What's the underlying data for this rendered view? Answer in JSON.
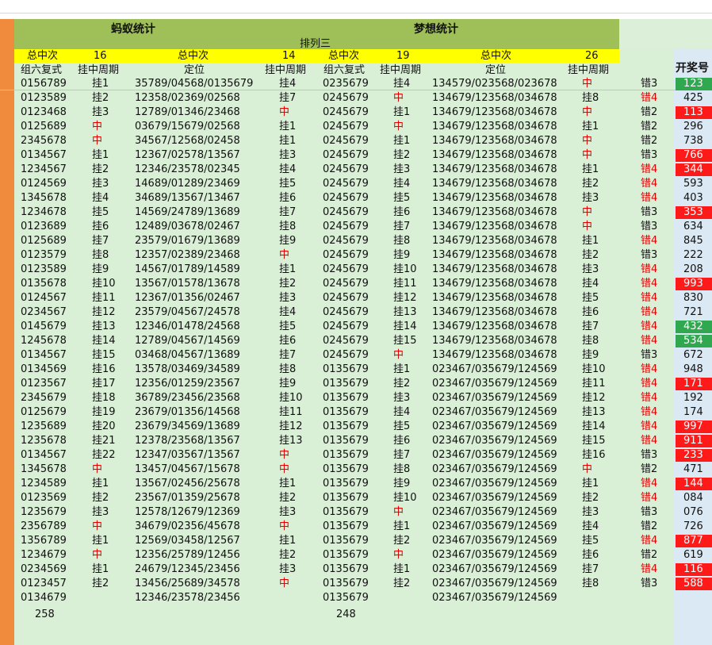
{
  "titles": {
    "ant": "蚂蚁统计",
    "dream": "梦想统计",
    "sub": "排列三"
  },
  "header1": {
    "total_label_a": "总中次",
    "total_a": "16",
    "total_label_b": "总中次",
    "total_b": "14",
    "total_label_c": "总中次",
    "total_c": "19",
    "total_label_d": "总中次",
    "total_d": "26"
  },
  "header2": {
    "c1": "组六复式",
    "c2": "挂中周期",
    "c3": "定位",
    "c4": "挂中周期",
    "c5": "组六复式",
    "c6": "挂中周期",
    "c7": "定位",
    "c8": "挂中周期",
    "c10": "开奖号"
  },
  "rows": [
    [
      "0156789",
      "挂1",
      "35789/04568/0135679",
      "挂4",
      "0235679",
      "挂4",
      "134579/023568/023678",
      "中",
      "错3",
      "123",
      "g"
    ],
    [
      "0123589",
      "挂2",
      "12358/02369/02568",
      "挂7",
      "0245679",
      "中",
      "134679/123568/034678",
      "挂8",
      "错4",
      "425",
      "b"
    ],
    [
      "0123468",
      "挂3",
      "12789/01346/23468",
      "中",
      "0245679",
      "挂1",
      "134679/123568/034678",
      "中",
      "错2",
      "113",
      "r"
    ],
    [
      "0125689",
      "中",
      "03679/15679/02568",
      "挂1",
      "0245679",
      "中",
      "134679/123568/034678",
      "挂1",
      "错2",
      "296",
      "b"
    ],
    [
      "2345678",
      "中",
      "34567/12568/02458",
      "挂1",
      "0245679",
      "挂1",
      "134679/123568/034678",
      "中",
      "错2",
      "738",
      "b"
    ],
    [
      "0134567",
      "挂1",
      "12367/02578/13567",
      "挂3",
      "0245679",
      "挂2",
      "134679/123568/034678",
      "中",
      "错3",
      "766",
      "r"
    ],
    [
      "1234567",
      "挂2",
      "12346/23578/02345",
      "挂4",
      "0245679",
      "挂3",
      "134679/123568/034678",
      "挂1",
      "错4",
      "344",
      "r"
    ],
    [
      "0124569",
      "挂3",
      "14689/01289/23469",
      "挂5",
      "0245679",
      "挂4",
      "134679/123568/034678",
      "挂2",
      "错4",
      "593",
      "b"
    ],
    [
      "1345678",
      "挂4",
      "34689/13567/13467",
      "挂6",
      "0245679",
      "挂5",
      "134679/123568/034678",
      "挂3",
      "错4",
      "403",
      "b"
    ],
    [
      "1234678",
      "挂5",
      "14569/24789/13689",
      "挂7",
      "0245679",
      "挂6",
      "134679/123568/034678",
      "中",
      "错3",
      "353",
      "r"
    ],
    [
      "0123689",
      "挂6",
      "12489/03678/02467",
      "挂8",
      "0245679",
      "挂7",
      "134679/123568/034678",
      "中",
      "错3",
      "634",
      "b"
    ],
    [
      "0125689",
      "挂7",
      "23579/01679/13689",
      "挂9",
      "0245679",
      "挂8",
      "134679/123568/034678",
      "挂1",
      "错4",
      "845",
      "b"
    ],
    [
      "0123579",
      "挂8",
      "12357/02389/23468",
      "中",
      "0245679",
      "挂9",
      "134679/123568/034678",
      "挂2",
      "错3",
      "222",
      "b"
    ],
    [
      "0123589",
      "挂9",
      "14567/01789/14589",
      "挂1",
      "0245679",
      "挂10",
      "134679/123568/034678",
      "挂3",
      "错4",
      "208",
      "b"
    ],
    [
      "0135678",
      "挂10",
      "13567/01578/13678",
      "挂2",
      "0245679",
      "挂11",
      "134679/123568/034678",
      "挂4",
      "错4",
      "993",
      "r"
    ],
    [
      "0124567",
      "挂11",
      "12367/01356/02467",
      "挂3",
      "0245679",
      "挂12",
      "134679/123568/034678",
      "挂5",
      "错4",
      "830",
      "b"
    ],
    [
      "0234567",
      "挂12",
      "23579/04567/24578",
      "挂4",
      "0245679",
      "挂13",
      "134679/123568/034678",
      "挂6",
      "错4",
      "721",
      "b"
    ],
    [
      "0145679",
      "挂13",
      "12346/01478/24568",
      "挂5",
      "0245679",
      "挂14",
      "134679/123568/034678",
      "挂7",
      "错4",
      "432",
      "g"
    ],
    [
      "1245678",
      "挂14",
      "12789/04567/14569",
      "挂6",
      "0245679",
      "挂15",
      "134679/123568/034678",
      "挂8",
      "错4",
      "534",
      "g"
    ],
    [
      "0134567",
      "挂15",
      "03468/04567/13689",
      "挂7",
      "0245679",
      "中",
      "134679/123568/034678",
      "挂9",
      "错3",
      "672",
      "b"
    ],
    [
      "0134569",
      "挂16",
      "13578/03469/34589",
      "挂8",
      "0135679",
      "挂1",
      "023467/035679/124569",
      "挂10",
      "错4",
      "948",
      "b"
    ],
    [
      "0123567",
      "挂17",
      "12356/01259/23567",
      "挂9",
      "0135679",
      "挂2",
      "023467/035679/124569",
      "挂11",
      "错4",
      "171",
      "r"
    ],
    [
      "2345679",
      "挂18",
      "36789/23456/23568",
      "挂10",
      "0135679",
      "挂3",
      "023467/035679/124569",
      "挂12",
      "错4",
      "192",
      "b"
    ],
    [
      "0125679",
      "挂19",
      "23679/01356/14568",
      "挂11",
      "0135679",
      "挂4",
      "023467/035679/124569",
      "挂13",
      "错4",
      "174",
      "b"
    ],
    [
      "1235689",
      "挂20",
      "23679/34569/13689",
      "挂12",
      "0135679",
      "挂5",
      "023467/035679/124569",
      "挂14",
      "错4",
      "997",
      "r"
    ],
    [
      "1235678",
      "挂21",
      "12378/23568/13567",
      "挂13",
      "0135679",
      "挂6",
      "023467/035679/124569",
      "挂15",
      "错4",
      "911",
      "r"
    ],
    [
      "0134567",
      "挂22",
      "12347/03567/13567",
      "中",
      "0135679",
      "挂7",
      "023467/035679/124569",
      "挂16",
      "错3",
      "233",
      "r"
    ],
    [
      "1345678",
      "中",
      "13457/04567/15678",
      "中",
      "0135679",
      "挂8",
      "023467/035679/124569",
      "中",
      "错2",
      "471",
      "b"
    ],
    [
      "1234589",
      "挂1",
      "13567/02456/25678",
      "挂1",
      "0135679",
      "挂9",
      "023467/035679/124569",
      "挂1",
      "错4",
      "144",
      "r"
    ],
    [
      "0123569",
      "挂2",
      "23567/01359/25678",
      "挂2",
      "0135679",
      "挂10",
      "023467/035679/124569",
      "挂2",
      "错4",
      "084",
      "b"
    ],
    [
      "1235679",
      "挂3",
      "12578/12679/12369",
      "挂3",
      "0135679",
      "中",
      "023467/035679/124569",
      "挂3",
      "错3",
      "076",
      "b"
    ],
    [
      "2356789",
      "中",
      "34679/02356/45678",
      "中",
      "0135679",
      "挂1",
      "023467/035679/124569",
      "挂4",
      "错2",
      "726",
      "b"
    ],
    [
      "1356789",
      "挂1",
      "12569/03458/12567",
      "挂1",
      "0135679",
      "挂2",
      "023467/035679/124569",
      "挂5",
      "错4",
      "877",
      "r"
    ],
    [
      "1234679",
      "中",
      "12356/25789/12456",
      "挂2",
      "0135679",
      "中",
      "023467/035679/124569",
      "挂6",
      "错2",
      "619",
      "b"
    ],
    [
      "0234569",
      "挂1",
      "24679/12345/23456",
      "挂3",
      "0135679",
      "挂1",
      "023467/035679/124569",
      "挂7",
      "错4",
      "116",
      "r"
    ],
    [
      "0123457",
      "挂2",
      "13456/25689/34578",
      "中",
      "0135679",
      "挂2",
      "023467/035679/124569",
      "挂8",
      "错3",
      "588",
      "r"
    ],
    [
      "0134679",
      "",
      "12346/23578/23456",
      "",
      "0135679",
      "",
      "023467/035679/124569",
      "",
      "",
      "",
      ""
    ]
  ],
  "footer": {
    "count_a": "258",
    "count_b": "248"
  },
  "colors": {
    "draw_red": "#ff1a1a",
    "draw_green": "#2fa84f",
    "title_bar": "#9fbf58",
    "header_yellow": "#ffff00",
    "body_green": "#d9efd6",
    "left_strip": "#f08a3c"
  }
}
